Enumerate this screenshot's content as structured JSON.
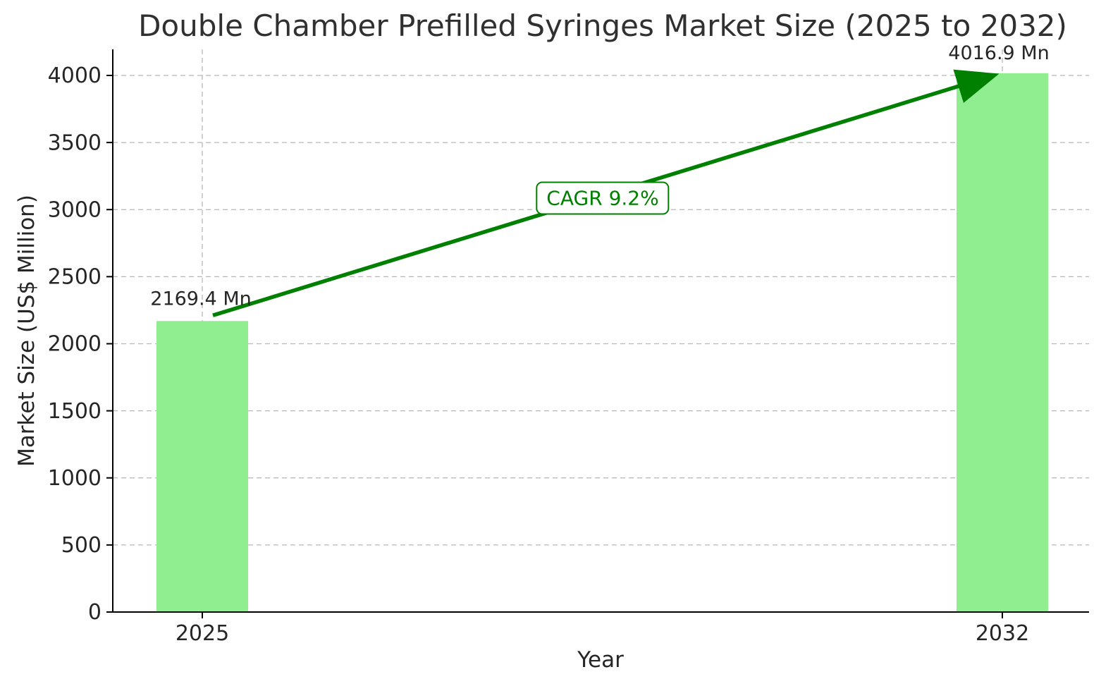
{
  "chart_data": {
    "type": "bar",
    "title": "Double Chamber Prefilled Syringes Market Size (2025 to 2032)",
    "xlabel": "Year",
    "ylabel": "Market Size (US$ Million)",
    "categories": [
      "2025",
      "2032"
    ],
    "values": [
      2169.4,
      4016.9
    ],
    "bar_labels": [
      "2169.4 Mn",
      "4016.9 Mn"
    ],
    "cagr_label": "CAGR 9.2%",
    "ylim": [
      0,
      4000
    ],
    "ytick_step": 500,
    "yticks": [
      0,
      500,
      1000,
      1500,
      2000,
      2500,
      3000,
      3500,
      4000
    ],
    "grid": true,
    "legend": "none",
    "colors": {
      "bar": "#90EE90",
      "arrow": "#008000",
      "grid": "#b8b8b8",
      "text": "#262626",
      "spine": "#000000"
    }
  }
}
